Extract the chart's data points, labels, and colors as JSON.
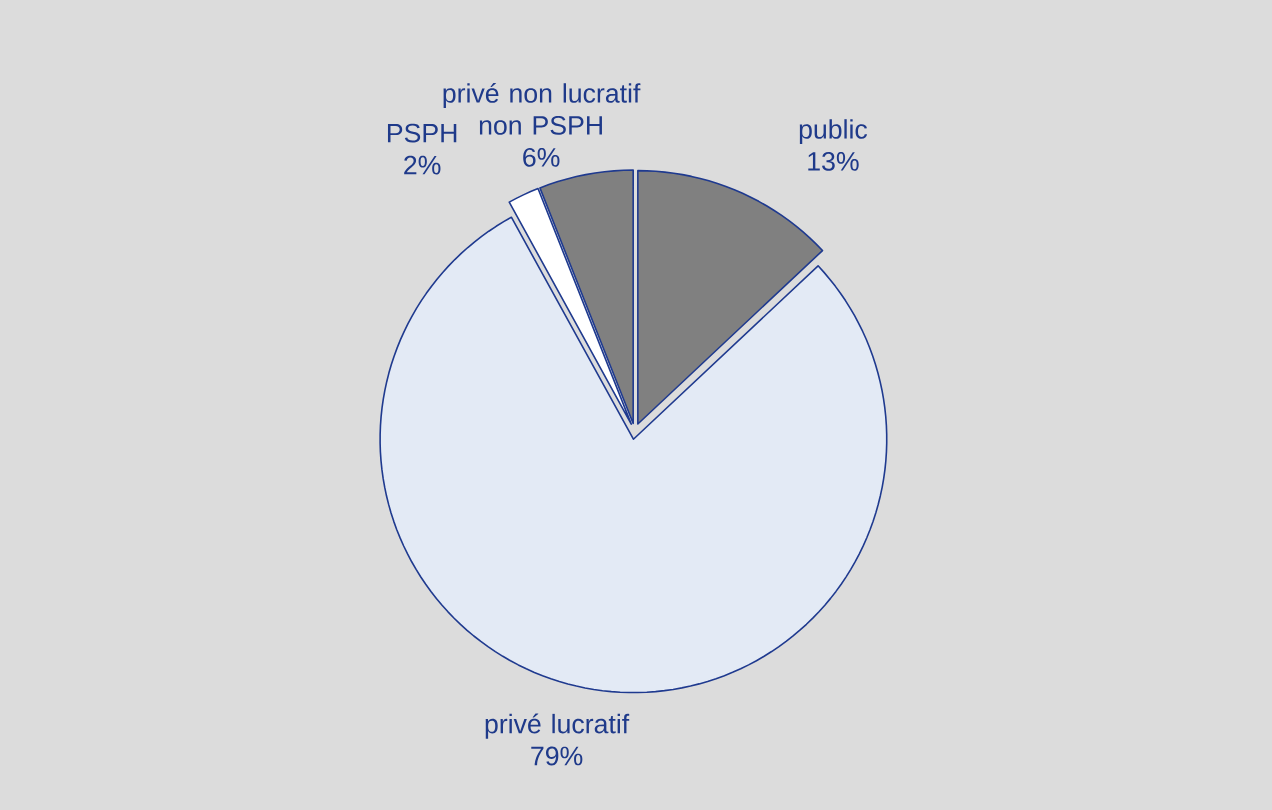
{
  "chart_data": {
    "type": "pie",
    "categories": [
      "public",
      "privé lucratif",
      "PSPH",
      "privé non lucratif non PSPH"
    ],
    "values": [
      13,
      79,
      2,
      6
    ],
    "value_labels": [
      "13%",
      "79%",
      "2%",
      "6%"
    ],
    "colors": [
      "#808080",
      "#e3eaf5",
      "#ffffff",
      "#808080"
    ]
  }
}
